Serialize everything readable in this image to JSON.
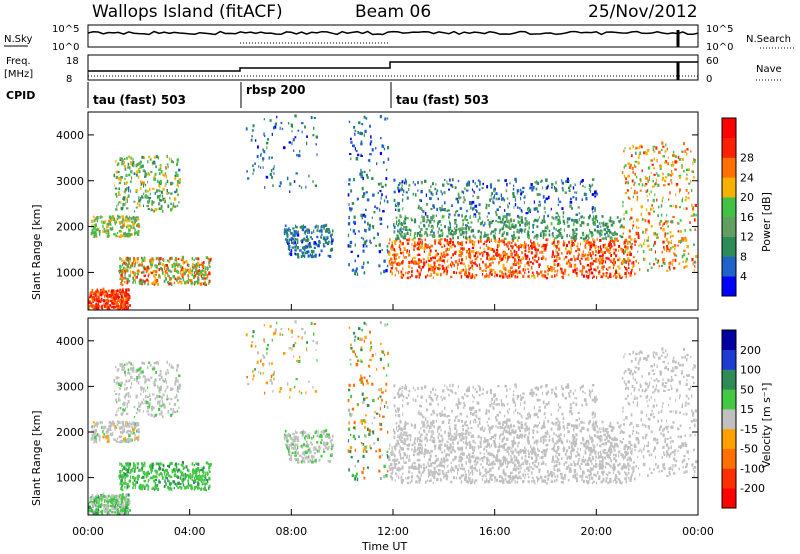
{
  "header": {
    "title": "Wallops Island (fitACF)",
    "beam": "Beam 06",
    "date": "25/Nov/2012"
  },
  "strip1": {
    "left_label": "N.Sky",
    "left_ticks": [
      "10^5",
      "10^0"
    ],
    "right_ticks": [
      "10^5",
      "10^0"
    ],
    "right_label": "N.Search"
  },
  "strip2": {
    "left_label_top": "Freq.",
    "left_label_bottom": "[MHz]",
    "left_ticks": [
      "18",
      "8"
    ],
    "right_ticks": [
      "60",
      "0"
    ],
    "right_label": "Nave"
  },
  "cpid": {
    "label": "CPID",
    "segments": [
      "tau (fast) 503",
      "rbsp 200",
      "tau (fast) 503"
    ]
  },
  "colors": {
    "power": [
      "#0000ff",
      "#1e64c8",
      "#2e8b57",
      "#5fa060",
      "#44c044",
      "#f5b000",
      "#ff7000",
      "#ff2000",
      "#ff0000"
    ],
    "velocity": [
      "#0000a0",
      "#1e3cd2",
      "#2e8b57",
      "#44c844",
      "#c0c0c0",
      "#ffa000",
      "#ff7000",
      "#ff3000",
      "#ff0000"
    ]
  },
  "chart_data": [
    {
      "type": "heatmap",
      "name": "Power",
      "xlabel": "",
      "ylabel": "Slant Range [km]",
      "xlim": [
        "00:00",
        "24:00"
      ],
      "ylim": [
        180,
        4500
      ],
      "y_ticks": [
        1000,
        2000,
        3000,
        4000
      ],
      "colorbar": {
        "label": "Power [dB]",
        "ticks": [
          4,
          8,
          12,
          16,
          20,
          24,
          28
        ]
      }
    },
    {
      "type": "heatmap",
      "name": "Velocity",
      "xlabel": "Time UT",
      "ylabel": "Slant Range [km]",
      "xlim": [
        "00:00",
        "24:00"
      ],
      "ylim": [
        180,
        4500
      ],
      "y_ticks": [
        1000,
        2000,
        3000,
        4000
      ],
      "x_ticks": [
        "00:00",
        "04:00",
        "08:00",
        "12:00",
        "16:00",
        "20:00",
        "00:00"
      ],
      "colorbar": {
        "label": "Velocity [m s⁻¹]",
        "ticks": [
          200,
          100,
          50,
          15,
          -15,
          -50,
          -100,
          -200
        ]
      }
    }
  ]
}
